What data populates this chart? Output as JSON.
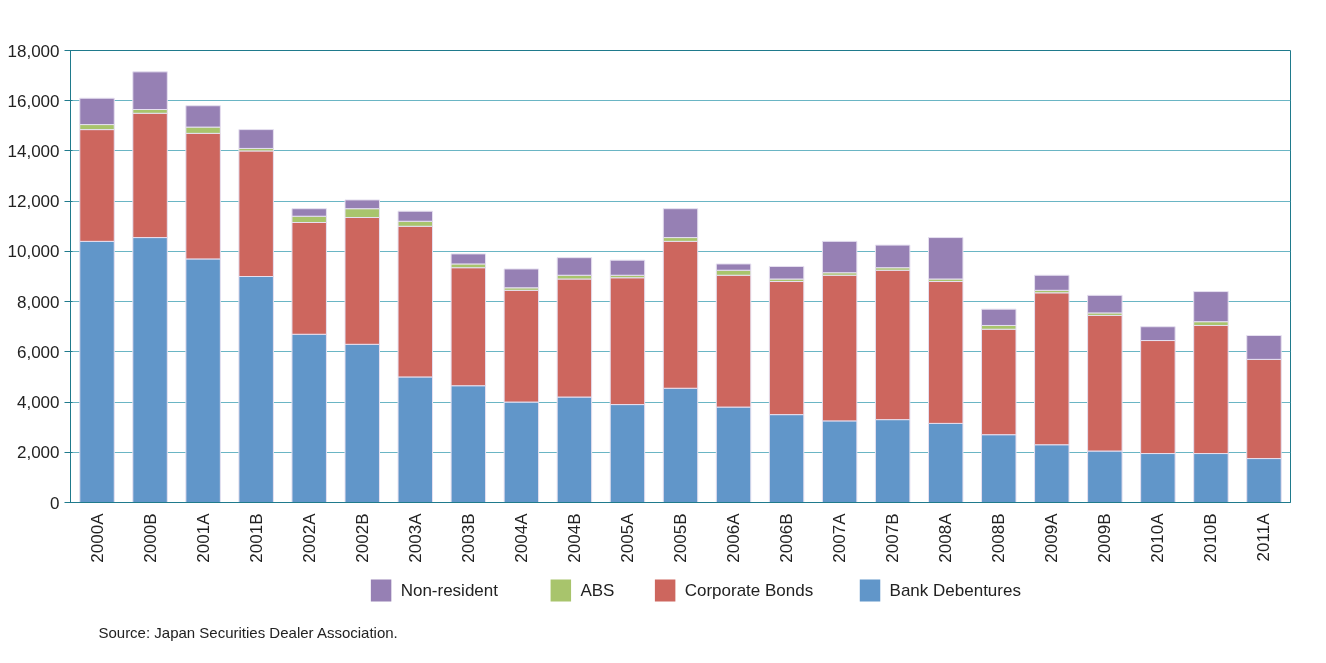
{
  "chart_data": {
    "type": "bar",
    "stacked": true,
    "categories": [
      "2000A",
      "2000B",
      "2001A",
      "2001B",
      "2002A",
      "2002B",
      "2003A",
      "2003B",
      "2004A",
      "2004B",
      "2005A",
      "2005B",
      "2006A",
      "2006B",
      "2007A",
      "2007B",
      "2008A",
      "2008B",
      "2009A",
      "2009B",
      "2010A",
      "2010B",
      "2011A"
    ],
    "series": [
      {
        "name": "Bank Debentures",
        "color": "#6196c9",
        "values": [
          10400,
          10550,
          9700,
          9000,
          6700,
          6300,
          5000,
          4650,
          4000,
          4200,
          3900,
          4550,
          3800,
          3500,
          3250,
          3300,
          3150,
          2700,
          2300,
          2050,
          1950,
          1950,
          1750
        ]
      },
      {
        "name": "Corporate Bonds",
        "color": "#cd665e",
        "values": [
          4450,
          4950,
          5000,
          5000,
          4450,
          5050,
          6000,
          4700,
          4450,
          4700,
          5050,
          5850,
          5250,
          5300,
          5800,
          5950,
          5650,
          4200,
          6050,
          5400,
          4500,
          5100,
          3950
        ]
      },
      {
        "name": "ABS",
        "color": "#a8c46c",
        "values": [
          200,
          150,
          250,
          100,
          250,
          350,
          200,
          150,
          100,
          150,
          100,
          150,
          200,
          100,
          100,
          100,
          100,
          150,
          100,
          100,
          0,
          150,
          0
        ]
      },
      {
        "name": "Non-resident",
        "color": "#9680b4",
        "values": [
          1050,
          1500,
          850,
          750,
          300,
          350,
          400,
          400,
          750,
          700,
          600,
          1150,
          250,
          500,
          1250,
          900,
          1650,
          650,
          600,
          700,
          550,
          1200,
          950
        ]
      }
    ],
    "ylim": [
      0,
      18000
    ],
    "yticks": [
      {
        "value": 0,
        "label": "0"
      },
      {
        "value": 2000,
        "label": "2,000"
      },
      {
        "value": 4000,
        "label": "4,000"
      },
      {
        "value": 6000,
        "label": "6,000"
      },
      {
        "value": 8000,
        "label": "8,000"
      },
      {
        "value": 10000,
        "label": "10,000"
      },
      {
        "value": 12000,
        "label": "12,000"
      },
      {
        "value": 14000,
        "label": "14,000"
      },
      {
        "value": 16000,
        "label": "16,000"
      },
      {
        "value": 18000,
        "label": "18,000"
      }
    ],
    "grid": "y",
    "legend": "bottom",
    "annotations": [
      "Source:      Japan Securities Dealer Association."
    ]
  }
}
